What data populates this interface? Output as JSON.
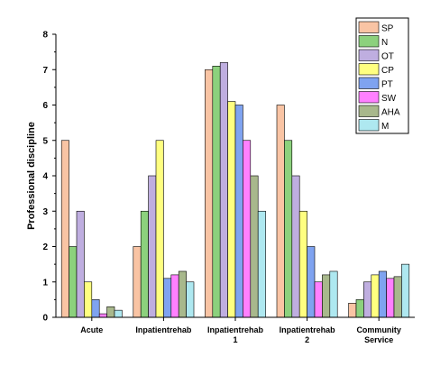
{
  "chart_data": {
    "type": "bar",
    "ylabel": "Professional discipline",
    "ylim": [
      0,
      8
    ],
    "yticks": [
      "0",
      "1",
      "2",
      "3",
      "4",
      "5",
      "6",
      "7",
      "8"
    ],
    "grid": false,
    "legend_position": "top-right",
    "categories": [
      [
        "Acute"
      ],
      [
        "Inpatientrehab"
      ],
      [
        "Inpatientrehab",
        "1"
      ],
      [
        "Inpatientrehab",
        "2"
      ],
      [
        "Community",
        "Service"
      ]
    ],
    "series": [
      {
        "name": "SP",
        "color": "#f9c4a4",
        "values": [
          5,
          2,
          7,
          6,
          0.4
        ]
      },
      {
        "name": "N",
        "color": "#8cd17d",
        "values": [
          2,
          3,
          7.1,
          5,
          0.5
        ]
      },
      {
        "name": "OT",
        "color": "#bfaee0",
        "values": [
          3,
          4,
          7.2,
          4,
          1
        ]
      },
      {
        "name": "CP",
        "color": "#ffff80",
        "values": [
          1,
          5,
          6.1,
          3,
          1.2
        ]
      },
      {
        "name": "PT",
        "color": "#7fa3f0",
        "values": [
          0.5,
          1.1,
          6,
          2,
          1.3
        ]
      },
      {
        "name": "SW",
        "color": "#ff80ff",
        "values": [
          0.1,
          1.2,
          5,
          1,
          1.1
        ]
      },
      {
        "name": "AHA",
        "color": "#a8b88c",
        "values": [
          0.3,
          1.3,
          4,
          1.2,
          1.15
        ]
      },
      {
        "name": "M",
        "color": "#aee8f0",
        "values": [
          0.2,
          1,
          3,
          1.3,
          1.5
        ]
      }
    ]
  }
}
